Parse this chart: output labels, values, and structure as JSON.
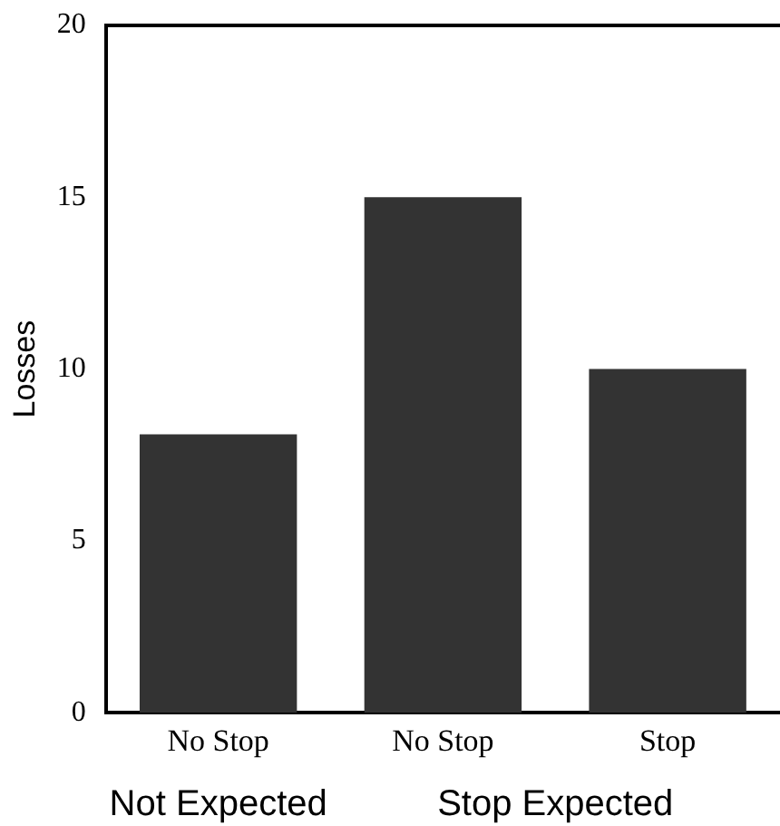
{
  "chart_data": {
    "type": "bar",
    "ylabel": "Losses",
    "categories": [
      "No Stop",
      "No Stop",
      "Stop"
    ],
    "values": [
      8.1,
      15,
      10
    ],
    "color": "#333333",
    "ylim": [
      0,
      20
    ],
    "yticks": [
      0,
      5,
      10,
      15,
      20
    ],
    "grid": false,
    "legend": false,
    "annotations": [
      "Not Expected",
      "Stop Expected"
    ]
  }
}
